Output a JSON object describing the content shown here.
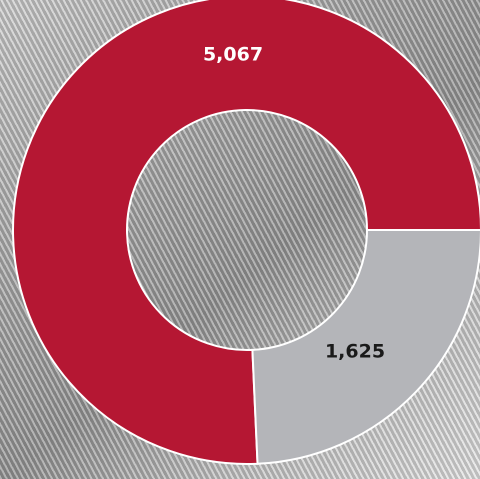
{
  "chart_data": {
    "type": "donut",
    "categories": [
      null,
      null
    ],
    "series": [
      {
        "values": [
          5067,
          1625
        ],
        "value_labels": [
          "5,067",
          "1,625"
        ],
        "colors": [
          "#b51733",
          "#b4b5b9"
        ],
        "label_colors": [
          "#ffffff",
          "#1a1a1a"
        ]
      }
    ]
  }
}
